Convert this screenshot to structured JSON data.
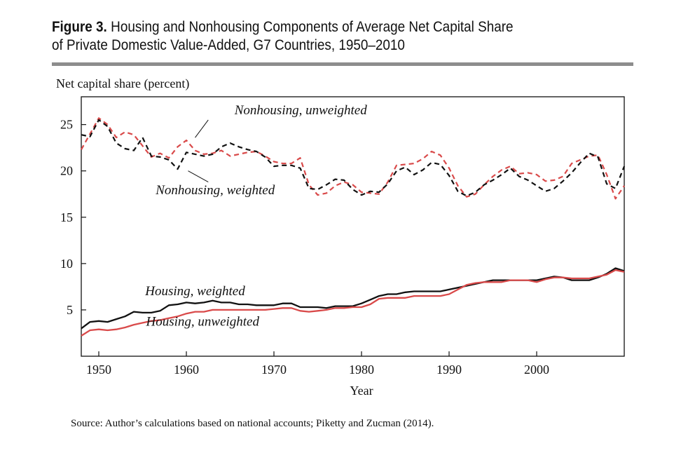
{
  "figure": {
    "label": "Figure 3.",
    "title_line1": "Housing and Nonhousing Components of Average Net Capital Share",
    "title_line2": "of Private Domestic Value-Added, G7 Countries, 1950–2010",
    "source": "Source: Author’s calculations based on national accounts; Piketty and Zucman (2014)."
  },
  "chart_data": {
    "type": "line",
    "title": "",
    "ylabel": "Net capital share (percent)",
    "xlabel": "Year",
    "xlim": [
      1948,
      2010
    ],
    "ylim": [
      0,
      28
    ],
    "xticks": [
      1950,
      1960,
      1970,
      1980,
      1990,
      2000
    ],
    "yticks": [
      5,
      10,
      15,
      20,
      25
    ],
    "grid": false,
    "legend": "none",
    "x": [
      1948,
      1949,
      1950,
      1951,
      1952,
      1953,
      1954,
      1955,
      1956,
      1957,
      1958,
      1959,
      1960,
      1961,
      1962,
      1963,
      1964,
      1965,
      1966,
      1967,
      1968,
      1969,
      1970,
      1971,
      1972,
      1973,
      1974,
      1975,
      1976,
      1977,
      1978,
      1979,
      1980,
      1981,
      1982,
      1983,
      1984,
      1985,
      1986,
      1987,
      1988,
      1989,
      1990,
      1991,
      1992,
      1993,
      1994,
      1995,
      1996,
      1997,
      1998,
      1999,
      2000,
      2001,
      2002,
      2003,
      2004,
      2005,
      2006,
      2007,
      2008,
      2009,
      2010
    ],
    "series": [
      {
        "name": "Nonhousing, unweighted",
        "color": "#d94a4a",
        "dash": "dashed",
        "values": [
          22.3,
          24.0,
          25.7,
          25.0,
          23.6,
          24.2,
          23.9,
          22.7,
          21.5,
          21.9,
          21.4,
          22.6,
          23.3,
          22.2,
          21.8,
          21.9,
          22.2,
          21.6,
          21.8,
          22.0,
          22.1,
          21.6,
          21.0,
          20.8,
          20.8,
          21.4,
          18.5,
          17.4,
          17.6,
          18.4,
          18.8,
          18.5,
          17.7,
          17.6,
          17.5,
          18.8,
          20.6,
          20.7,
          20.8,
          21.3,
          22.1,
          21.7,
          20.3,
          18.4,
          17.2,
          17.5,
          18.5,
          19.4,
          20.1,
          20.5,
          19.7,
          19.8,
          19.6,
          18.9,
          19.0,
          19.4,
          20.8,
          21.2,
          21.6,
          21.7,
          19.6,
          17.0,
          18.4
        ]
      },
      {
        "name": "Nonhousing, weighted",
        "color": "#111111",
        "dash": "dashed",
        "values": [
          23.9,
          23.7,
          25.5,
          24.8,
          23.0,
          22.4,
          22.2,
          23.6,
          21.6,
          21.5,
          21.2,
          20.2,
          22.0,
          21.8,
          21.6,
          21.8,
          22.6,
          23.0,
          22.6,
          22.3,
          22.1,
          21.5,
          20.5,
          20.6,
          20.6,
          20.3,
          18.1,
          18.0,
          18.5,
          19.1,
          19.0,
          18.0,
          17.4,
          17.8,
          17.7,
          18.6,
          20.0,
          20.4,
          19.6,
          20.1,
          20.9,
          20.7,
          19.5,
          17.8,
          17.3,
          17.7,
          18.5,
          19.0,
          19.6,
          20.3,
          19.4,
          19.0,
          18.4,
          17.8,
          18.1,
          18.9,
          19.8,
          20.9,
          21.9,
          21.5,
          18.6,
          18.1,
          20.5
        ]
      },
      {
        "name": "Housing, weighted",
        "color": "#111111",
        "dash": "solid",
        "values": [
          3.0,
          3.7,
          3.8,
          3.7,
          4.0,
          4.3,
          4.8,
          4.7,
          4.7,
          4.9,
          5.5,
          5.6,
          5.8,
          5.7,
          5.8,
          6.0,
          5.8,
          5.8,
          5.6,
          5.6,
          5.5,
          5.5,
          5.5,
          5.7,
          5.7,
          5.3,
          5.3,
          5.3,
          5.2,
          5.4,
          5.4,
          5.4,
          5.7,
          6.1,
          6.5,
          6.7,
          6.7,
          6.9,
          7.0,
          7.0,
          7.0,
          7.0,
          7.2,
          7.4,
          7.6,
          7.8,
          8.0,
          8.2,
          8.2,
          8.2,
          8.2,
          8.2,
          8.2,
          8.4,
          8.6,
          8.5,
          8.2,
          8.2,
          8.2,
          8.5,
          8.9,
          9.5,
          9.2
        ]
      },
      {
        "name": "Housing, unweighted",
        "color": "#d94a4a",
        "dash": "solid",
        "values": [
          2.2,
          2.8,
          2.9,
          2.8,
          2.9,
          3.1,
          3.4,
          3.6,
          3.8,
          3.9,
          4.1,
          4.3,
          4.6,
          4.8,
          4.8,
          5.0,
          5.0,
          5.0,
          5.0,
          5.0,
          5.0,
          5.0,
          5.1,
          5.2,
          5.2,
          4.9,
          4.8,
          4.9,
          5.0,
          5.2,
          5.2,
          5.3,
          5.3,
          5.6,
          6.2,
          6.3,
          6.3,
          6.3,
          6.5,
          6.5,
          6.5,
          6.5,
          6.7,
          7.2,
          7.7,
          7.9,
          8.0,
          8.0,
          8.0,
          8.2,
          8.2,
          8.2,
          8.0,
          8.3,
          8.5,
          8.5,
          8.4,
          8.4,
          8.4,
          8.6,
          8.8,
          9.3,
          9.1
        ]
      }
    ],
    "annotations": [
      {
        "text": "Nonhousing, unweighted",
        "x": 1965.5,
        "y": 26.1
      },
      {
        "text": "Nonhousing, weighted",
        "x": 1956.5,
        "y": 17.5
      },
      {
        "text": "Housing, weighted",
        "x": 1955.3,
        "y": 6.6
      },
      {
        "text": "Housing, unweighted",
        "x": 1955.4,
        "y": 3.3
      }
    ]
  }
}
